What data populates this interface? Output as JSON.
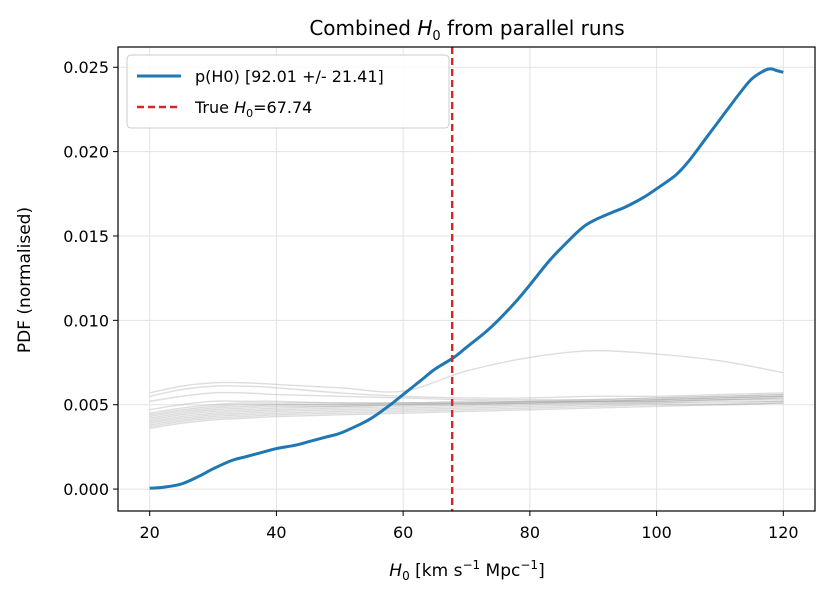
{
  "chart_data": {
    "type": "line",
    "title": "Combined H₀ from parallel runs",
    "title_parts": {
      "pre": "Combined ",
      "sym": "H",
      "sub": "0",
      "post": " from parallel runs"
    },
    "xlabel": "H₀ [km s⁻¹ Mpc⁻¹]",
    "xlabel_parts": {
      "sym": "H",
      "sub": "0",
      "pre_unit": " [km s",
      "exp1": "−1",
      "mid": " Mpc",
      "exp2": "−1",
      "post": "]"
    },
    "ylabel": "PDF (normalised)",
    "xlim": [
      15,
      125
    ],
    "ylim": [
      -0.0013,
      0.0262
    ],
    "x_ticks": [
      20,
      40,
      60,
      80,
      100,
      120
    ],
    "y_ticks": [
      0.0,
      0.005,
      0.01,
      0.015,
      0.02,
      0.025
    ],
    "y_tick_labels": [
      "0.000",
      "0.005",
      "0.010",
      "0.015",
      "0.020",
      "0.025"
    ],
    "grid": true,
    "legend_position": "top-left",
    "colors": {
      "combined": "#1f77b4",
      "truth": "#d62728",
      "runs": "#a9a9a9",
      "grid": "#e3e3e3"
    },
    "combined": {
      "name": "p(H0) [92.01 +/- 21.41]",
      "x": [
        20,
        22,
        25,
        28,
        30,
        33,
        35,
        38,
        40,
        43,
        45,
        48,
        50,
        53,
        55,
        58,
        60,
        63,
        65,
        68,
        70,
        73,
        75,
        78,
        80,
        83,
        85,
        88,
        90,
        93,
        95,
        98,
        100,
        103,
        105,
        108,
        110,
        113,
        115,
        117,
        118,
        119,
        120
      ],
      "y": [
        5e-05,
        0.0001,
        0.0003,
        0.0008,
        0.0012,
        0.0017,
        0.0019,
        0.0022,
        0.0024,
        0.0026,
        0.0028,
        0.0031,
        0.0033,
        0.0038,
        0.0042,
        0.005,
        0.0056,
        0.0065,
        0.0071,
        0.0078,
        0.0084,
        0.0093,
        0.01,
        0.0112,
        0.0121,
        0.0135,
        0.0143,
        0.0154,
        0.0159,
        0.0164,
        0.0167,
        0.0173,
        0.0178,
        0.0186,
        0.0194,
        0.0209,
        0.0219,
        0.0234,
        0.0243,
        0.0248,
        0.0249,
        0.0248,
        0.0247
      ]
    },
    "truth": {
      "label": "True H₀=67.74",
      "label_parts": {
        "pre": "True ",
        "sym": "H",
        "sub": "0",
        "post": "=67.74"
      },
      "x": 67.74
    },
    "runs_x": [
      20,
      25,
      30,
      35,
      40,
      50,
      60,
      70,
      80,
      90,
      100,
      110,
      120
    ],
    "runs": [
      [
        0.0057,
        0.0061,
        0.0063,
        0.0063,
        0.0062,
        0.006,
        0.0058,
        0.007,
        0.0078,
        0.0082,
        0.008,
        0.0076,
        0.0069
      ],
      [
        0.0055,
        0.0059,
        0.0061,
        0.0061,
        0.006,
        0.0057,
        0.0055,
        0.0054,
        0.0054,
        0.0055,
        0.0055,
        0.0056,
        0.0057
      ],
      [
        0.0052,
        0.0055,
        0.0057,
        0.0057,
        0.0056,
        0.0055,
        0.0054,
        0.0053,
        0.0053,
        0.0053,
        0.0054,
        0.0055,
        0.0056
      ],
      [
        0.0045,
        0.0048,
        0.005,
        0.0051,
        0.0051,
        0.0051,
        0.0051,
        0.0052,
        0.0052,
        0.0053,
        0.0054,
        0.0055,
        0.0056
      ],
      [
        0.0043,
        0.0046,
        0.0048,
        0.0049,
        0.005,
        0.005,
        0.0051,
        0.0051,
        0.0052,
        0.0052,
        0.0053,
        0.0054,
        0.0055
      ],
      [
        0.0041,
        0.0044,
        0.0046,
        0.0047,
        0.0048,
        0.0049,
        0.005,
        0.0051,
        0.0051,
        0.0052,
        0.0052,
        0.0053,
        0.0054
      ],
      [
        0.004,
        0.0043,
        0.0045,
        0.0046,
        0.0047,
        0.0048,
        0.0049,
        0.005,
        0.0051,
        0.0051,
        0.0052,
        0.0053,
        0.0053
      ],
      [
        0.0039,
        0.0042,
        0.0044,
        0.0045,
        0.0046,
        0.0047,
        0.0048,
        0.0049,
        0.005,
        0.0051,
        0.0051,
        0.0052,
        0.0052
      ],
      [
        0.0038,
        0.0041,
        0.0043,
        0.0044,
        0.0045,
        0.0046,
        0.0047,
        0.0048,
        0.0049,
        0.005,
        0.0051,
        0.0051,
        0.0052
      ],
      [
        0.0037,
        0.004,
        0.0042,
        0.0043,
        0.0044,
        0.0045,
        0.0046,
        0.0047,
        0.0048,
        0.0049,
        0.005,
        0.005,
        0.0051
      ],
      [
        0.0036,
        0.0039,
        0.0041,
        0.0042,
        0.0043,
        0.0044,
        0.0045,
        0.0046,
        0.0047,
        0.0048,
        0.0049,
        0.005,
        0.0051
      ],
      [
        0.0042,
        0.0045,
        0.0047,
        0.0048,
        0.0049,
        0.0049,
        0.005,
        0.005,
        0.0051,
        0.0052,
        0.0053,
        0.0054,
        0.0055
      ],
      [
        0.0044,
        0.0047,
        0.0049,
        0.005,
        0.005,
        0.005,
        0.005,
        0.0051,
        0.0051,
        0.0052,
        0.0052,
        0.0053,
        0.0054
      ],
      [
        0.0047,
        0.005,
        0.0052,
        0.0052,
        0.0052,
        0.0051,
        0.0051,
        0.0051,
        0.0052,
        0.0052,
        0.0053,
        0.0054,
        0.0055
      ]
    ]
  }
}
